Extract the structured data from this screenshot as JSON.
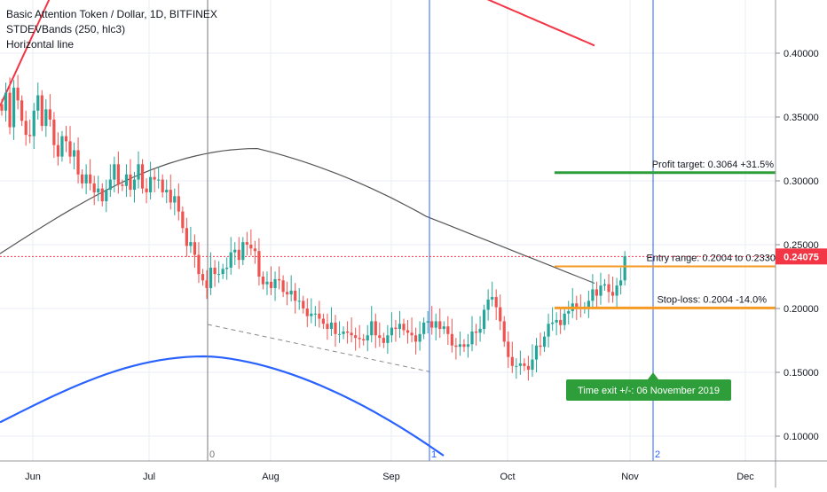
{
  "legend": {
    "symbol_title": "Basic Attention Token / Dollar, 1D, BITFINEX",
    "indicator": "STDEVBands (250, hlc3)",
    "drawing": "Horizontal line"
  },
  "chart_data": {
    "type": "candlestick",
    "y_axis": {
      "ticks": [
        "0.40000",
        "0.35000",
        "0.30000",
        "0.25000",
        "0.20000",
        "0.15000",
        "0.10000"
      ],
      "tick_values": [
        0.4,
        0.35,
        0.3,
        0.25,
        0.2,
        0.15,
        0.1
      ]
    },
    "x_axis": {
      "tick_labels": [
        "Jun",
        "Jul",
        "Aug",
        "Sep",
        "Oct",
        "Nov",
        "Dec"
      ]
    },
    "current_price": {
      "label": "0.24075",
      "value": 0.24075,
      "color": "#f23645"
    },
    "candles_close": [
      0.355,
      0.369,
      0.342,
      0.373,
      0.363,
      0.347,
      0.336,
      0.335,
      0.355,
      0.367,
      0.343,
      0.356,
      0.348,
      0.328,
      0.319,
      0.335,
      0.331,
      0.319,
      0.324,
      0.305,
      0.298,
      0.305,
      0.298,
      0.291,
      0.294,
      0.284,
      0.293,
      0.301,
      0.313,
      0.297,
      0.296,
      0.305,
      0.293,
      0.301,
      0.313,
      0.294,
      0.291,
      0.303,
      0.301,
      0.301,
      0.291,
      0.293,
      0.283,
      0.288,
      0.276,
      0.263,
      0.249,
      0.252,
      0.242,
      0.227,
      0.222,
      0.216,
      0.232,
      0.227,
      0.227,
      0.231,
      0.232,
      0.244,
      0.246,
      0.238,
      0.252,
      0.25,
      0.247,
      0.245,
      0.225,
      0.219,
      0.221,
      0.216,
      0.223,
      0.222,
      0.213,
      0.211,
      0.214,
      0.206,
      0.206,
      0.2,
      0.194,
      0.196,
      0.196,
      0.192,
      0.188,
      0.184,
      0.189,
      0.18,
      0.18,
      0.182,
      0.181,
      0.179,
      0.177,
      0.176,
      0.175,
      0.179,
      0.19,
      0.179,
      0.177,
      0.173,
      0.179,
      0.185,
      0.184,
      0.188,
      0.183,
      0.181,
      0.179,
      0.174,
      0.18,
      0.189,
      0.19,
      0.185,
      0.19,
      0.184,
      0.186,
      0.18,
      0.171,
      0.17,
      0.172,
      0.17,
      0.172,
      0.182,
      0.181,
      0.184,
      0.199,
      0.207,
      0.209,
      0.201,
      0.19,
      0.174,
      0.162,
      0.155,
      0.155,
      0.157,
      0.155,
      0.152,
      0.16,
      0.171,
      0.17,
      0.178,
      0.188,
      0.189,
      0.191,
      0.187,
      0.196,
      0.198,
      0.204,
      0.201,
      0.2,
      0.201,
      0.206,
      0.215,
      0.21,
      0.218,
      0.219,
      0.213,
      0.21,
      0.218,
      0.222,
      0.241
    ],
    "stdev_bands": {
      "params": "250, hlc3",
      "upper_color": "#f23645",
      "middle_color": "#555555",
      "lower_color": "#2962ff"
    },
    "horizontal_line": {
      "value": 0.2407,
      "color": "#f23645",
      "style": "dotted"
    },
    "annotations": {
      "profit_target": {
        "label": "Profit target: 0.3064 +31.5%",
        "value": 0.3064,
        "color": "#2e9e3a"
      },
      "entry_range": {
        "label": "Entry range: 0.2004 to 0.2330",
        "value": 0.233,
        "color": "#f59a23"
      },
      "stop_loss": {
        "label": "Stop-loss: 0.2004 -14.0%",
        "value": 0.2004,
        "color": "#f59a23"
      },
      "time_exit": {
        "label": "Time exit +/-: 06 November 2019",
        "color": "#2e9e3a"
      }
    },
    "vertical_markers": [
      {
        "label": "0",
        "color": "#777777"
      },
      {
        "label": "1",
        "color": "#2962ff"
      },
      {
        "label": "2",
        "color": "#2962ff"
      }
    ],
    "colors": {
      "up": "#26a69a",
      "down": "#ef5350",
      "axis_text": "#131722",
      "grid": "#ebeef3"
    }
  }
}
